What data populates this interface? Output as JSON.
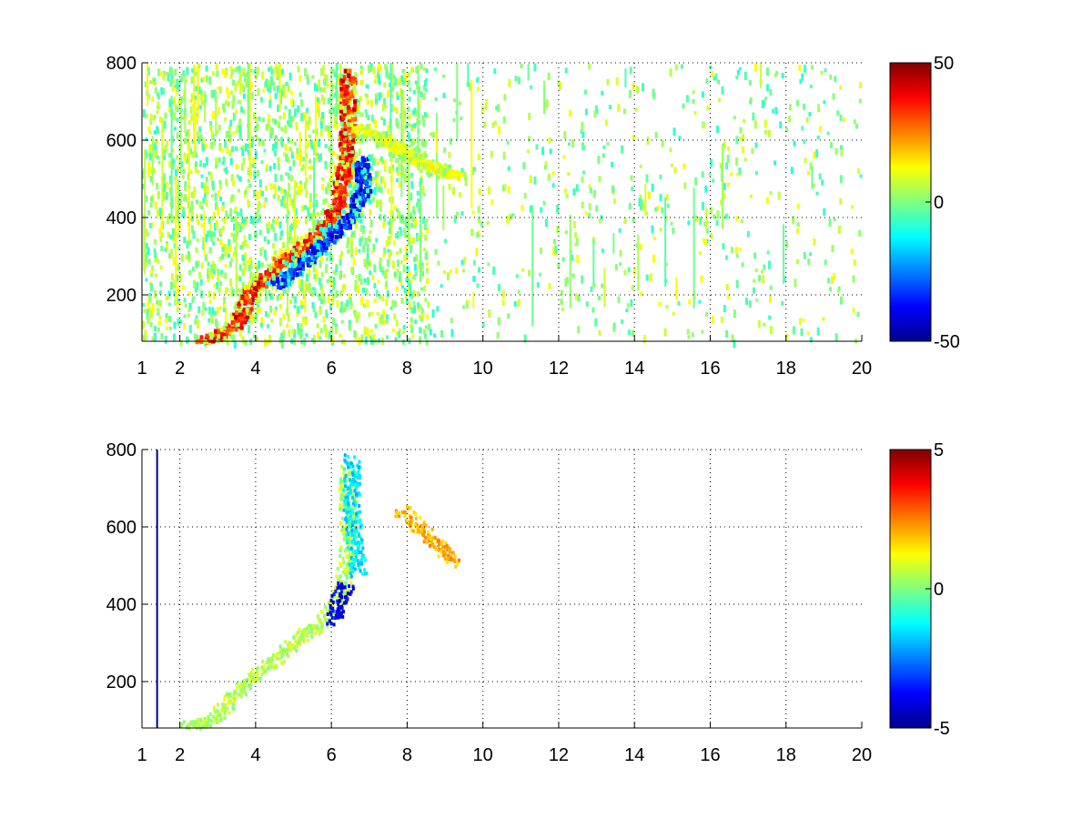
{
  "chart_data": [
    {
      "type": "heatmap",
      "title": "",
      "xlabel": "",
      "ylabel": "",
      "xlim": [
        1,
        20
      ],
      "ylim": [
        80,
        800
      ],
      "xticks": [
        1,
        2,
        4,
        6,
        8,
        10,
        12,
        14,
        16,
        18,
        20
      ],
      "xtick_labels": [
        "1",
        "2",
        "4",
        "6",
        "8",
        "10",
        "12",
        "14",
        "16",
        "18",
        "20"
      ],
      "yticks": [
        200,
        400,
        600,
        800
      ],
      "ytick_labels": [
        "200",
        "400",
        "600",
        "800"
      ],
      "grid": true,
      "colormap": "jet",
      "clim": [
        -50,
        50
      ],
      "colorbar_ticks": [
        -50,
        0,
        50
      ],
      "colorbar_tick_labels": [
        "-50",
        "0",
        "50"
      ],
      "features": [
        {
          "kind": "ridge",
          "value": 45,
          "points": [
            [
              2.5,
              85
            ],
            [
              3.0,
              100
            ],
            [
              3.5,
              130
            ],
            [
              3.8,
              210
            ],
            [
              4.2,
              250
            ],
            [
              4.7,
              295
            ],
            [
              5.2,
              330
            ],
            [
              5.7,
              370
            ],
            [
              6.1,
              430
            ],
            [
              6.3,
              520
            ],
            [
              6.4,
              650
            ],
            [
              6.4,
              780
            ]
          ]
        },
        {
          "kind": "ridge",
          "value": -45,
          "points": [
            [
              4.5,
              230
            ],
            [
              5.0,
              270
            ],
            [
              5.5,
              315
            ],
            [
              6.0,
              360
            ],
            [
              6.5,
              410
            ],
            [
              6.8,
              480
            ],
            [
              6.8,
              560
            ]
          ]
        },
        {
          "kind": "ridge",
          "value": 15,
          "points": [
            [
              6.6,
              640
            ],
            [
              7.2,
              610
            ],
            [
              7.8,
              580
            ],
            [
              8.3,
              550
            ],
            [
              8.8,
              530
            ],
            [
              9.3,
              510
            ]
          ]
        }
      ]
    },
    {
      "type": "heatmap",
      "title": "",
      "xlabel": "",
      "ylabel": "",
      "xlim": [
        1,
        20
      ],
      "ylim": [
        80,
        800
      ],
      "xticks": [
        1,
        2,
        4,
        6,
        8,
        10,
        12,
        14,
        16,
        18,
        20
      ],
      "xtick_labels": [
        "1",
        "2",
        "4",
        "6",
        "8",
        "10",
        "12",
        "14",
        "16",
        "18",
        "20"
      ],
      "yticks": [
        200,
        400,
        600,
        800
      ],
      "ytick_labels": [
        "200",
        "400",
        "600",
        "800"
      ],
      "grid": true,
      "colormap": "jet",
      "clim": [
        -5,
        5
      ],
      "colorbar_ticks": [
        -5,
        0,
        5
      ],
      "colorbar_tick_labels": [
        "-5",
        "0",
        "5"
      ],
      "features": [
        {
          "kind": "band",
          "value": 0.5,
          "points": [
            [
              2.0,
              85
            ],
            [
              2.8,
              100
            ],
            [
              3.7,
              200
            ],
            [
              4.5,
              260
            ],
            [
              5.2,
              320
            ],
            [
              5.8,
              360
            ],
            [
              6.2,
              420
            ],
            [
              6.4,
              520
            ],
            [
              6.4,
              640
            ],
            [
              6.4,
              760
            ]
          ]
        },
        {
          "kind": "band",
          "value": -1.5,
          "points": [
            [
              6.5,
              780
            ],
            [
              6.5,
              650
            ],
            [
              6.6,
              560
            ],
            [
              6.7,
              480
            ]
          ]
        },
        {
          "kind": "band",
          "value": -4,
          "points": [
            [
              6.0,
              360
            ],
            [
              6.2,
              420
            ],
            [
              6.4,
              460
            ]
          ]
        },
        {
          "kind": "band",
          "value": 2,
          "points": [
            [
              7.8,
              650
            ],
            [
              8.3,
              600
            ],
            [
              8.8,
              560
            ],
            [
              9.3,
              510
            ]
          ]
        },
        {
          "kind": "line",
          "value": -5,
          "points": [
            [
              1.4,
              80
            ],
            [
              1.4,
              800
            ]
          ]
        }
      ]
    }
  ]
}
